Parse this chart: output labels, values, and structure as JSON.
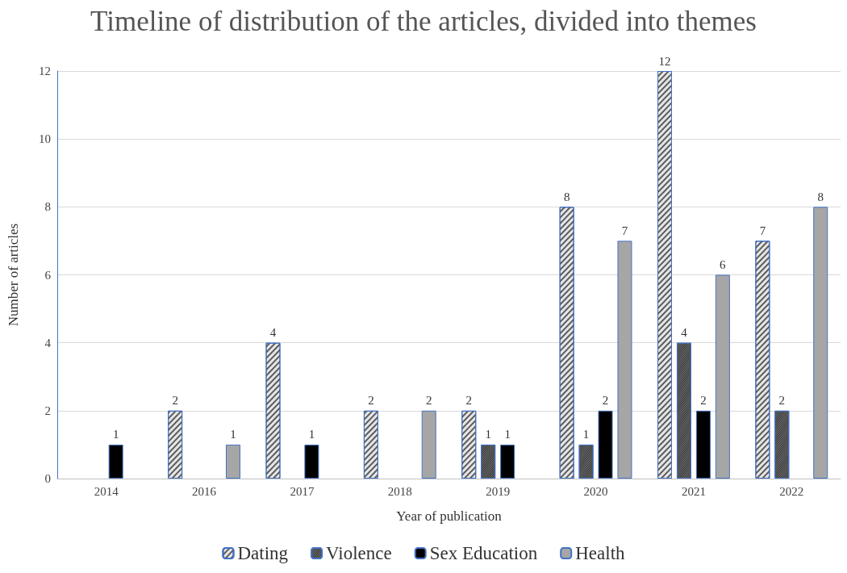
{
  "chart_data": {
    "type": "bar",
    "title": "Timeline of distribution of the articles, divided into themes",
    "xlabel": "Year of publication",
    "ylabel": "Number of articles",
    "categories": [
      "2014",
      "2016",
      "2017",
      "2018",
      "2019",
      "2020",
      "2021",
      "2022"
    ],
    "series": [
      {
        "name": "Dating",
        "color": "#e6e6e6",
        "values": [
          null,
          2,
          4,
          2,
          2,
          8,
          12,
          7
        ]
      },
      {
        "name": "Violence",
        "color": "#6e6e6e",
        "values": [
          null,
          null,
          null,
          null,
          1,
          1,
          4,
          2
        ]
      },
      {
        "name": "Sex Education",
        "color": "#000000",
        "values": [
          1,
          null,
          1,
          null,
          1,
          2,
          2,
          null
        ]
      },
      {
        "name": "Health",
        "color": "#a6a6a6",
        "values": [
          null,
          1,
          null,
          2,
          null,
          7,
          6,
          8
        ]
      }
    ],
    "ylim": [
      0,
      12
    ],
    "yticks": [
      0,
      2,
      4,
      6,
      8,
      10,
      12
    ],
    "grid": "y",
    "legend": "bottom",
    "data_labels": true
  }
}
